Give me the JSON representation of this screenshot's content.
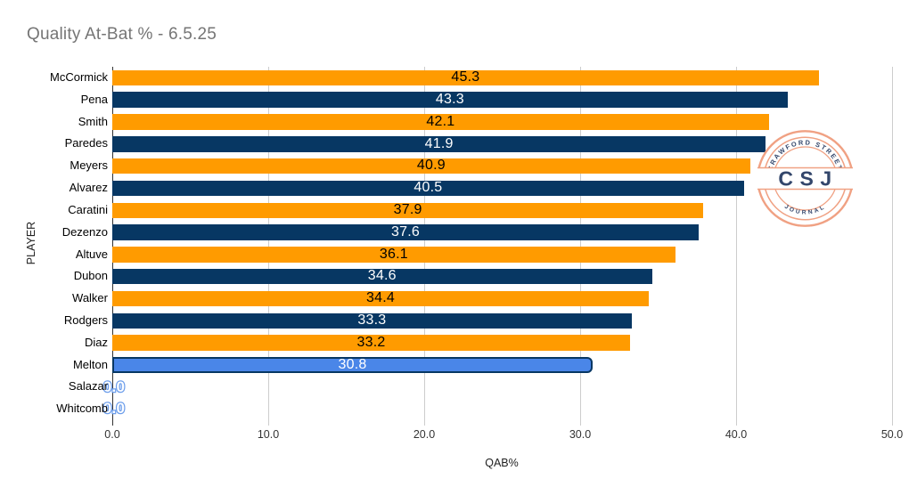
{
  "colors": {
    "orange": "#FF9B00",
    "navy": "#073763",
    "cornflower": "#4A86E8",
    "grid": "#CDCDCD",
    "axis": "#333333",
    "title": "#757575",
    "zero_stroke": "#6D9EEB",
    "logo_ring": "#F0A183",
    "logo_text": "#33466B"
  },
  "chart_data": {
    "type": "bar",
    "orientation": "horizontal",
    "title": "Quality At-Bat % - 6.5.25",
    "xlabel": "QAB%",
    "ylabel": "PLAYER",
    "xlim": [
      0,
      50
    ],
    "x_tick_labels": [
      "0.0",
      "10.0",
      "20.0",
      "30.0",
      "40.0",
      "50.0"
    ],
    "grid": true,
    "legend": false,
    "categories": [
      "McCormick",
      "Pena",
      "Smith",
      "Paredes",
      "Meyers",
      "Alvarez",
      "Caratini",
      "Dezenzo",
      "Altuve",
      "Dubon",
      "Walker",
      "Rodgers",
      "Diaz",
      "Melton",
      "Salazar",
      "Whitcomb"
    ],
    "values": [
      45.3,
      43.3,
      42.1,
      41.9,
      40.9,
      40.5,
      37.9,
      37.6,
      36.1,
      34.6,
      34.4,
      33.3,
      33.2,
      30.8,
      0.0,
      0.0
    ],
    "value_labels": [
      "45.3",
      "43.3",
      "42.1",
      "41.9",
      "40.9",
      "40.5",
      "37.9",
      "37.6",
      "36.1",
      "34.6",
      "34.4",
      "33.3",
      "33.2",
      "30.8",
      "0.0",
      "0.0"
    ],
    "bar_colors": [
      "orange",
      "navy",
      "orange",
      "navy",
      "orange",
      "navy",
      "orange",
      "navy",
      "orange",
      "navy",
      "orange",
      "navy",
      "orange",
      "cornflower",
      "none",
      "none"
    ],
    "value_label_styles": [
      "on-orange",
      "on-navy",
      "on-orange",
      "on-navy",
      "on-orange",
      "on-navy",
      "on-orange",
      "on-navy",
      "on-orange",
      "on-navy",
      "on-orange",
      "on-navy",
      "on-orange",
      "on-cornflower",
      "zero",
      "zero"
    ]
  },
  "logo": {
    "top_text": "CRAWFORD STREET",
    "center_text": "CSJ",
    "bottom_text": "JOURNAL",
    "star": "✦"
  }
}
